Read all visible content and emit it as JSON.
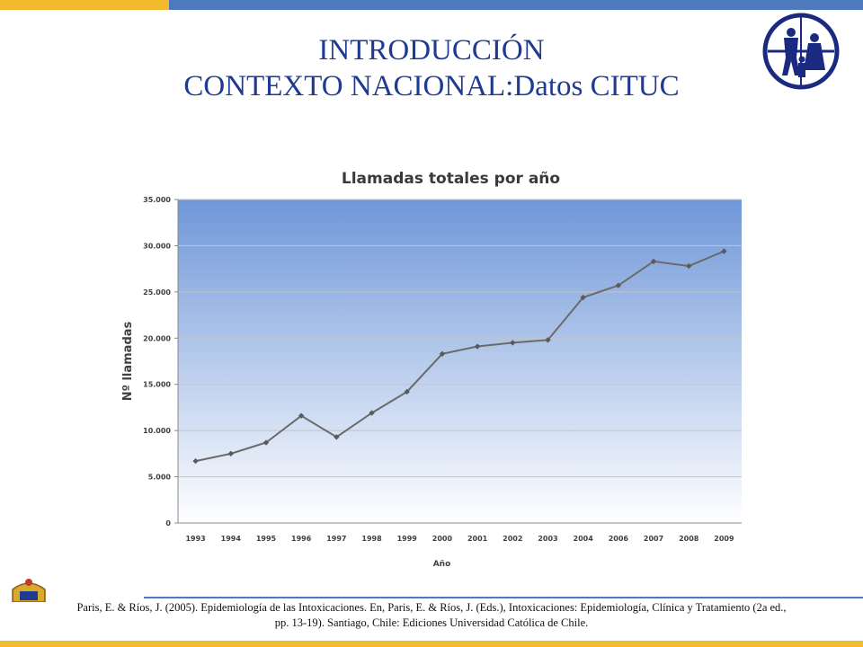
{
  "slide": {
    "title_line1": "INTRODUCCIÓN",
    "title_line2": "CONTEXTO NACIONAL:Datos CITUC",
    "citation_line1": "Paris, E. & Ríos, J. (2005). Epidemiología de las Intoxicaciones. En, Paris, E. & Ríos, J. (Eds.), Intoxicaciones: Epidemiología, Clínica y Tratamiento (2a ed.,",
    "citation_line2": "pp. 13-19). Santiago, Chile: Ediciones Universidad Católica de Chile.",
    "colors": {
      "accent_blue": "#4f79bd",
      "accent_gold": "#f2bb2e",
      "title_blue": "#1f3a93",
      "logo_navy": "#1a2a80"
    },
    "icons": [
      "family-logo-icon",
      "university-seal-icon"
    ]
  },
  "chart_data": {
    "type": "line",
    "title": "Llamadas totales por año",
    "xlabel": "Año",
    "ylabel": "Nº llamadas",
    "categories": [
      "1993",
      "1994",
      "1995",
      "1996",
      "1997",
      "1998",
      "1999",
      "2000",
      "2001",
      "2002",
      "2003",
      "2004",
      "2006",
      "2007",
      "2008",
      "2009"
    ],
    "values": [
      6700,
      7500,
      8700,
      11600,
      9300,
      11900,
      14200,
      18300,
      19100,
      19500,
      19800,
      24400,
      25700,
      28300,
      27800,
      29400
    ],
    "yticks": [
      "0",
      "5.000",
      "10.000",
      "15.000",
      "20.000",
      "25.000",
      "30.000",
      "35.000"
    ],
    "ylim": [
      0,
      35000
    ],
    "grid": true,
    "legend": "none",
    "line_color": "#6a6a6a",
    "plot_bg_top": "#6f97d8",
    "plot_bg_bottom": "#ffffff"
  }
}
